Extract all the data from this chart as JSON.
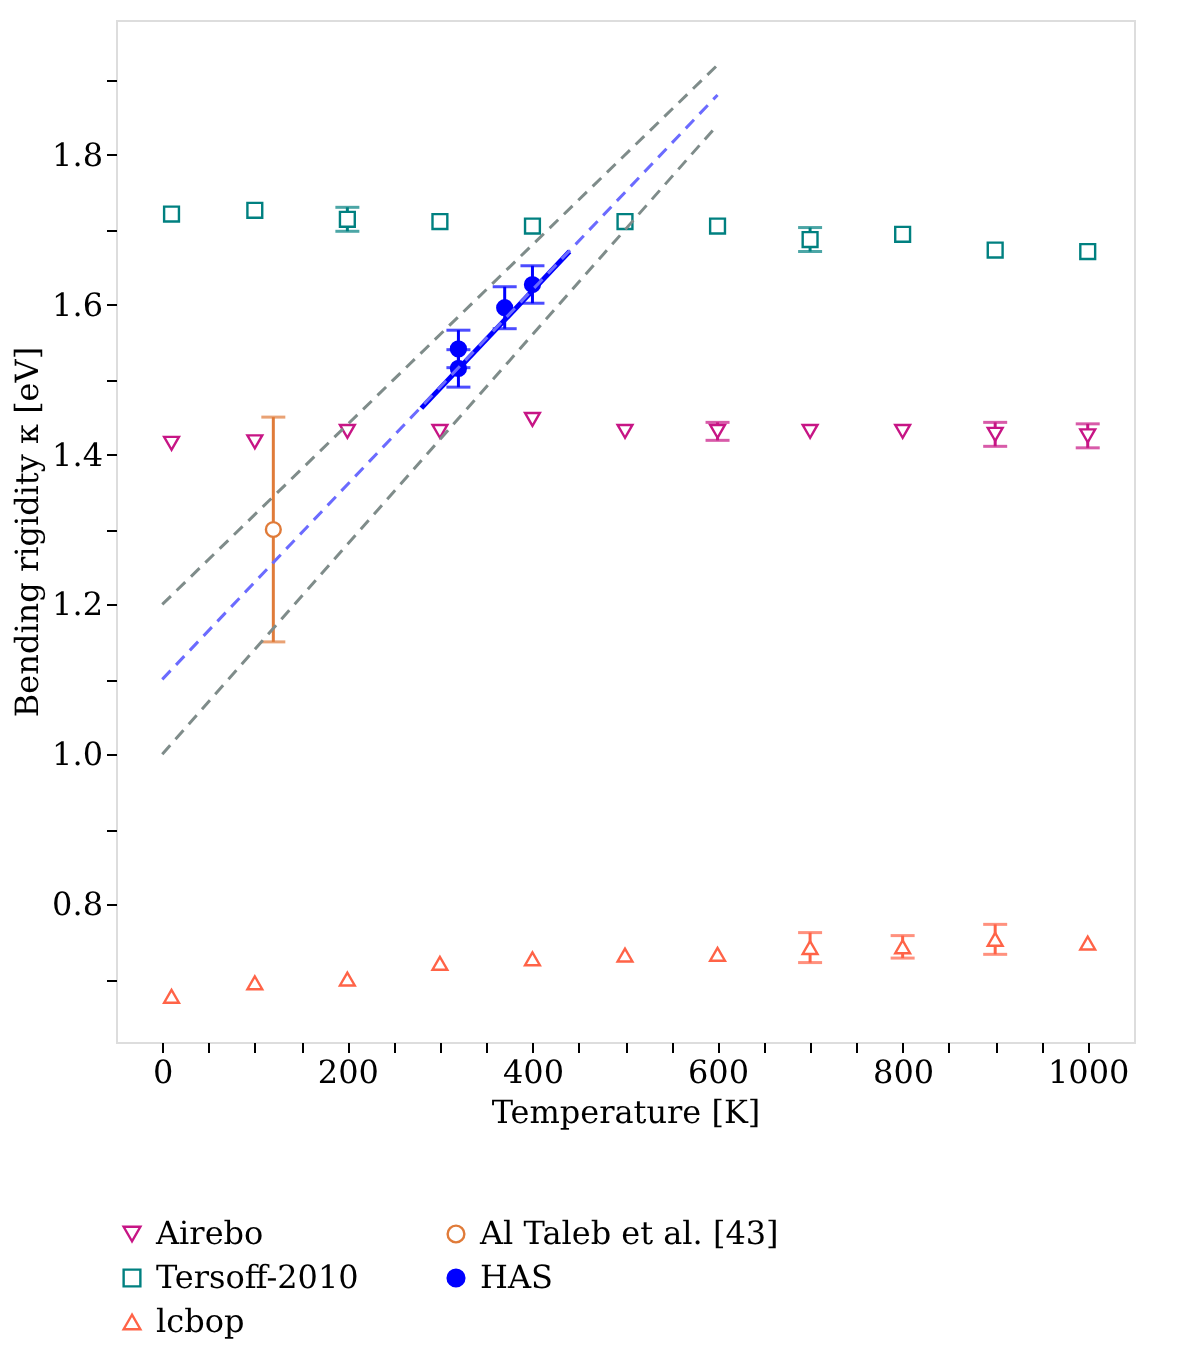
{
  "chart_data": {
    "type": "scatter",
    "xlabel": "Temperature [K]",
    "ylabel": "Bending rigidity κ [eV]",
    "xlim": [
      -50,
      1050
    ],
    "ylim": [
      0.616,
      1.98
    ],
    "xticks": [
      0,
      {
        "value": 50,
        "label": null
      },
      {
        "value": 100,
        "label": null
      },
      {
        "value": 150,
        "label": null
      },
      200,
      {
        "value": 250,
        "label": null
      },
      {
        "value": 300,
        "label": null
      },
      {
        "value": 350,
        "label": null
      },
      400,
      {
        "value": 450,
        "label": null
      },
      {
        "value": 500,
        "label": null
      },
      {
        "value": 550,
        "label": null
      },
      600,
      {
        "value": 650,
        "label": null
      },
      {
        "value": 700,
        "label": null
      },
      {
        "value": 750,
        "label": null
      },
      800,
      {
        "value": 850,
        "label": null
      },
      {
        "value": 900,
        "label": null
      },
      {
        "value": 950,
        "label": null
      },
      1000
    ],
    "yticks": [
      {
        "value": 0.7,
        "label": null
      },
      0.8,
      {
        "value": 0.9,
        "label": null
      },
      {
        "value": 1.0,
        "label": "1.0"
      },
      {
        "value": 1.1,
        "label": null
      },
      1.2,
      {
        "value": 1.3,
        "label": null
      },
      1.4,
      {
        "value": 1.5,
        "label": null
      },
      1.6,
      {
        "value": 1.7,
        "label": null
      },
      1.8,
      {
        "value": 1.9,
        "label": null
      }
    ],
    "grid": false,
    "legend": "bottom",
    "series": [
      {
        "name": "Airebo",
        "marker": "triangle-down-open",
        "color": "#c71585",
        "x": [
          10,
          100,
          200,
          300,
          400,
          500,
          600,
          700,
          800,
          900,
          1000
        ],
        "values": [
          1.415,
          1.417,
          1.431,
          1.431,
          1.447,
          1.431,
          1.431,
          1.431,
          1.431,
          1.427,
          1.425
        ],
        "errors": [
          null,
          null,
          null,
          null,
          null,
          null,
          0.012,
          null,
          null,
          0.016,
          0.016
        ]
      },
      {
        "name": "Tersoff-2010",
        "marker": "square-open",
        "color": "#008080",
        "x": [
          10,
          100,
          200,
          300,
          400,
          500,
          600,
          700,
          800,
          900,
          1000
        ],
        "values": [
          1.721,
          1.726,
          1.714,
          1.711,
          1.705,
          1.711,
          1.705,
          1.687,
          1.694,
          1.673,
          1.671
        ],
        "errors": [
          null,
          null,
          0.016,
          null,
          null,
          null,
          null,
          0.016,
          null,
          null,
          null
        ]
      },
      {
        "name": "lcbop",
        "marker": "triangle-open",
        "color": "#ff6347",
        "x": [
          10,
          100,
          200,
          300,
          400,
          500,
          600,
          700,
          800,
          900,
          1000
        ],
        "values": [
          0.677,
          0.695,
          0.7,
          0.721,
          0.727,
          0.732,
          0.733,
          0.742,
          0.743,
          0.753,
          0.748
        ],
        "errors": [
          null,
          null,
          null,
          null,
          null,
          null,
          null,
          0.02,
          0.015,
          0.02,
          null
        ]
      },
      {
        "name": "Al Taleb et al. [43]",
        "marker": "circle-open",
        "color": "#e07b39",
        "x": [
          120
        ],
        "values": [
          1.3
        ],
        "errors": [
          0.15
        ]
      },
      {
        "name": "HAS",
        "marker": "circle",
        "color": "#0000ff",
        "x": [
          320,
          320,
          370,
          400
        ],
        "values": [
          1.515,
          1.541,
          1.596,
          1.627
        ],
        "errors": [
          0.025,
          0.025,
          0.028,
          0.025
        ]
      },
      {
        "type": "line",
        "color": "#0000ff",
        "line_style": "solid",
        "x": [
          280,
          440
        ],
        "values": [
          1.462,
          1.671
        ]
      },
      {
        "type": "line",
        "color": "#6b6bff",
        "line_style": "dashed",
        "x": [
          0,
          600
        ],
        "values": [
          1.1,
          1.88
        ]
      },
      {
        "type": "line",
        "color": "#7f8c8a",
        "line_style": "dashed",
        "x": [
          0,
          600
        ],
        "values": [
          1.2,
          1.92
        ]
      },
      {
        "type": "line",
        "color": "#7f8c8a",
        "line_style": "dashed",
        "x": [
          0,
          600
        ],
        "values": [
          1.0,
          1.84
        ]
      }
    ]
  }
}
